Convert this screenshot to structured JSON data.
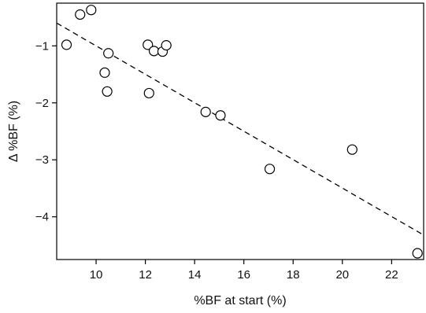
{
  "chart_data": {
    "type": "scatter",
    "title": "",
    "xlabel": "%BF at start (%)",
    "ylabel": "Δ %BF (%)",
    "xlim": [
      8.4,
      23.3
    ],
    "ylim": [
      -4.75,
      -0.25
    ],
    "x_ticks": [
      10,
      12,
      14,
      16,
      18,
      20,
      22
    ],
    "y_ticks": [
      -1,
      -2,
      -3,
      -4
    ],
    "x_tick_labels": [
      "10",
      "12",
      "14",
      "16",
      "18",
      "20",
      "22"
    ],
    "y_tick_labels": [
      "−1",
      "−2",
      "−3",
      "−4"
    ],
    "grid": false,
    "legend": "none",
    "points": [
      {
        "x": 8.8,
        "y": -0.98
      },
      {
        "x": 9.35,
        "y": -0.45
      },
      {
        "x": 9.8,
        "y": -0.37
      },
      {
        "x": 10.35,
        "y": -1.47
      },
      {
        "x": 10.45,
        "y": -1.8
      },
      {
        "x": 10.5,
        "y": -1.13
      },
      {
        "x": 12.1,
        "y": -0.98
      },
      {
        "x": 12.15,
        "y": -1.83
      },
      {
        "x": 12.35,
        "y": -1.09
      },
      {
        "x": 12.7,
        "y": -1.1
      },
      {
        "x": 12.85,
        "y": -0.99
      },
      {
        "x": 14.45,
        "y": -2.16
      },
      {
        "x": 15.05,
        "y": -2.22
      },
      {
        "x": 17.05,
        "y": -3.16
      },
      {
        "x": 20.4,
        "y": -2.82
      },
      {
        "x": 23.05,
        "y": -4.64
      }
    ],
    "trendline": {
      "style": "dashed",
      "x": [
        8.4,
        23.3
      ],
      "y": [
        -0.6,
        -4.32
      ]
    },
    "marker": "open-circle",
    "color": "#000000"
  }
}
